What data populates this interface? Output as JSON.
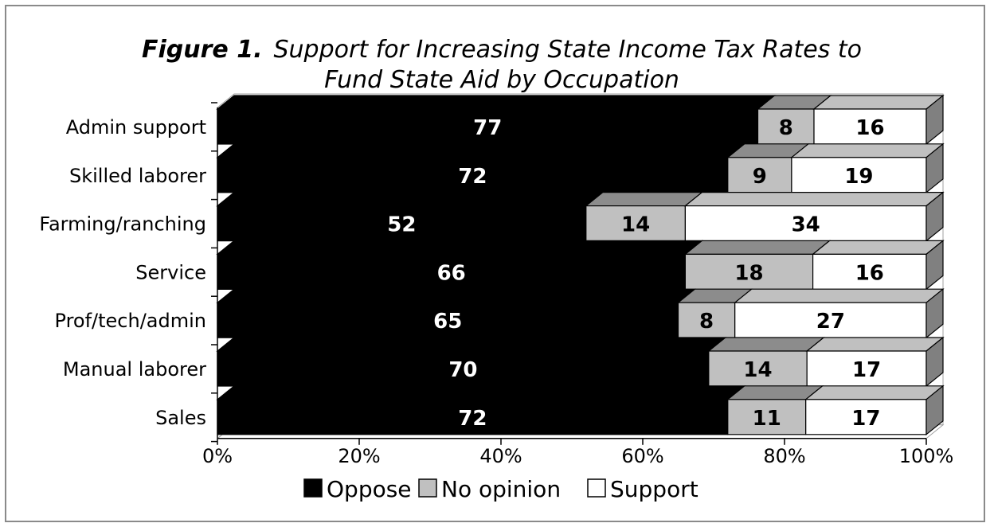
{
  "title": {
    "bold": "Figure 1.",
    "line1": "Support for Increasing State Income Tax Rates to",
    "line2": "Fund State Aid by Occupation"
  },
  "chart_data": {
    "type": "bar",
    "orientation": "horizontal",
    "stacked": "100%",
    "categories": [
      "Admin support",
      "Skilled laborer",
      "Farming/ranching",
      "Service",
      "Prof/tech/admin",
      "Manual laborer",
      "Sales"
    ],
    "series": [
      {
        "name": "Oppose",
        "values": [
          77,
          72,
          52,
          66,
          65,
          70,
          72
        ],
        "color": "#000000",
        "top_color": "#000000",
        "label_color": "#ffffff"
      },
      {
        "name": "No opinion",
        "values": [
          8,
          9,
          14,
          18,
          8,
          14,
          11
        ],
        "color": "#c0c0c0",
        "top_color": "#8c8c8c",
        "label_color": "#000000"
      },
      {
        "name": "Support",
        "values": [
          16,
          19,
          34,
          16,
          27,
          17,
          17
        ],
        "color": "#ffffff",
        "top_color": "#c0c0c0",
        "label_color": "#000000"
      }
    ],
    "x_ticks": [
      "0%",
      "20%",
      "40%",
      "60%",
      "80%",
      "100%"
    ],
    "xlim": [
      0,
      100
    ],
    "legend_position": "bottom",
    "grid": false
  }
}
